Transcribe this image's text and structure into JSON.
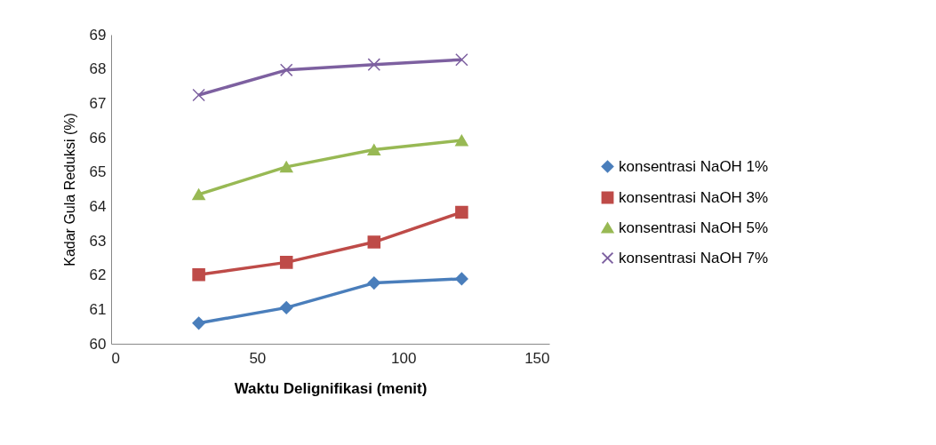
{
  "chart_data": {
    "type": "line",
    "xlabel": "Waktu Delignifikasi (menit)",
    "ylabel": "Kadar Gula Reduksi (%)",
    "x": [
      30,
      60,
      90,
      120
    ],
    "series": [
      {
        "name": "konsentrasi NaOH 1%",
        "color": "#4a7ebb",
        "marker": "diamond",
        "values": [
          60.6,
          61.05,
          61.77,
          61.89
        ]
      },
      {
        "name": "konsentrasi NaOH 3%",
        "color": "#be4b48",
        "marker": "square",
        "values": [
          62.01,
          62.37,
          62.96,
          63.83
        ]
      },
      {
        "name": "konsentrasi NaOH 5%",
        "color": "#98b954",
        "marker": "triangle",
        "values": [
          64.35,
          65.15,
          65.65,
          65.92
        ]
      },
      {
        "name": "konsentrasi NaOH 7%",
        "color": "#7d60a0",
        "marker": "cross",
        "values": [
          67.24,
          67.97,
          68.13,
          68.27
        ]
      }
    ],
    "xlim": [
      0,
      150
    ],
    "xticks": [
      0,
      50,
      100,
      150
    ],
    "ylim": [
      60,
      69
    ],
    "yticks": [
      60,
      61,
      62,
      63,
      64,
      65,
      66,
      67,
      68,
      69
    ],
    "grid": false,
    "legend": "right",
    "line_style": "solid"
  }
}
